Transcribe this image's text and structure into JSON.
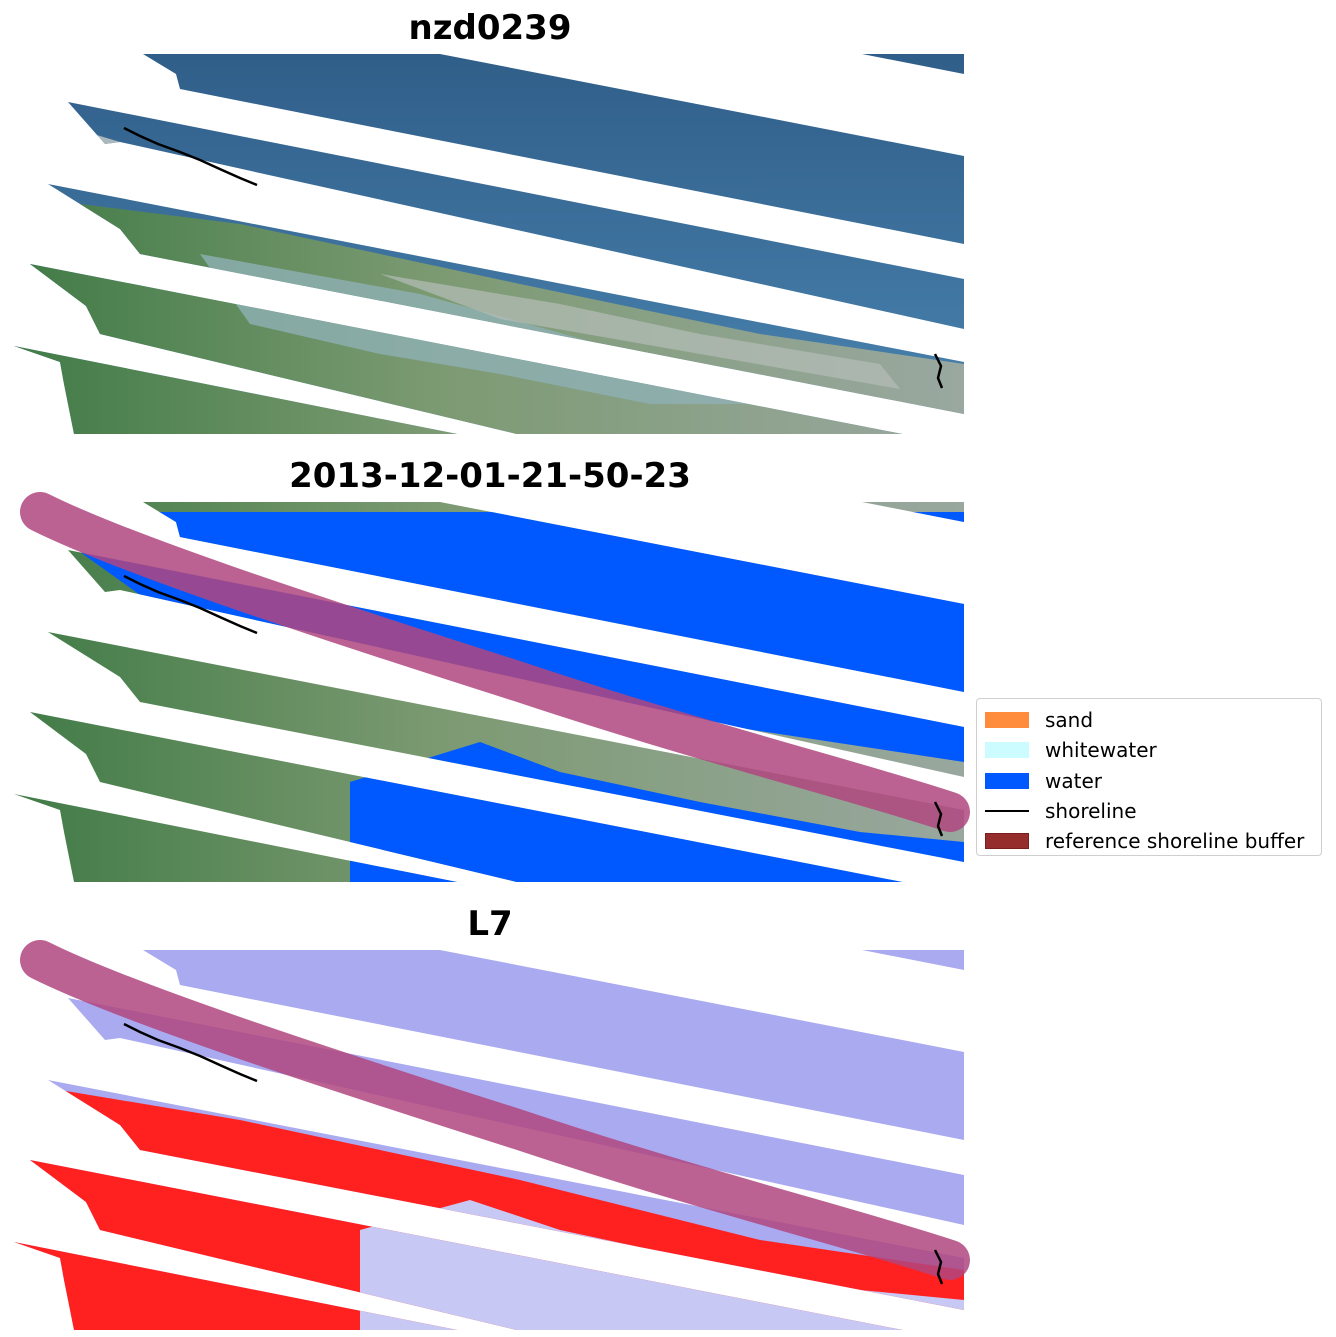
{
  "panels": {
    "p1": {
      "title": "nzd0239"
    },
    "p2": {
      "title": "2013-12-01-21-50-23"
    },
    "p3": {
      "title": "L7"
    }
  },
  "legend": {
    "items": [
      {
        "label": "sand",
        "color": "#ff8c3c",
        "kind": "patch"
      },
      {
        "label": "whitewater",
        "color": "#ccfcff",
        "kind": "patch"
      },
      {
        "label": "water",
        "color": "#0059ff",
        "kind": "patch"
      },
      {
        "label": "shoreline",
        "color": "#000000",
        "kind": "line"
      },
      {
        "label": "reference shoreline buffer",
        "color": "#962d2d",
        "kind": "patch",
        "edge": "#7a1e1e"
      }
    ]
  },
  "colors": {
    "sea": "#3d6e98",
    "land": "#5f8a5a",
    "water_class": "#0059ff",
    "buffer": "#b0477f",
    "index_land": "#ff2020",
    "index_water": "#aaaaf0"
  }
}
